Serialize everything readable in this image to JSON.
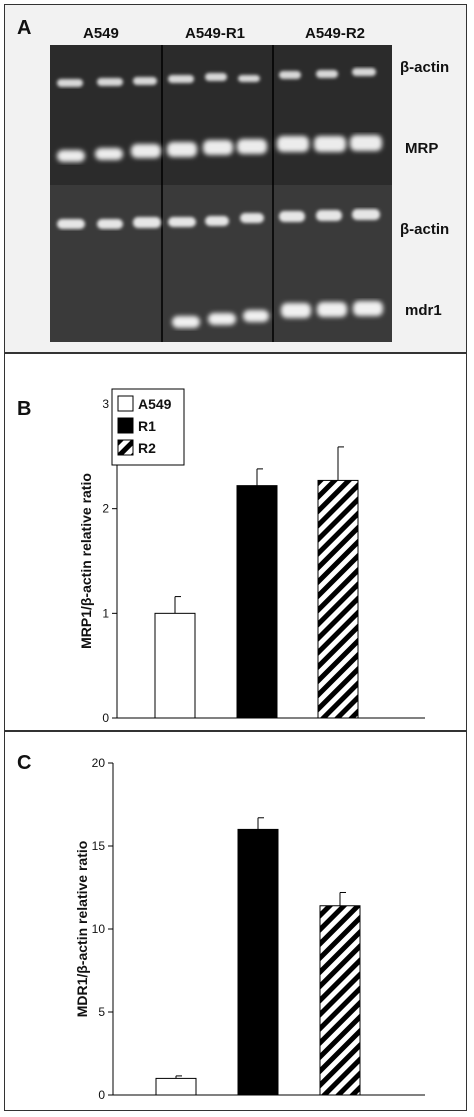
{
  "panel_a": {
    "letter": "A",
    "groups": [
      "A549",
      "A549-R1",
      "A549-R2"
    ],
    "bands": [
      "β-actin",
      "MRP",
      "β-actin",
      "mdr1"
    ]
  },
  "chart_data": [
    {
      "type": "bar",
      "panel": "B",
      "categories": [
        "A549",
        "R1",
        "R2"
      ],
      "values": [
        1.0,
        2.22,
        2.27
      ],
      "errors": [
        0.16,
        0.16,
        0.32
      ],
      "ylabel": "MRP1/β-actin relative ratio",
      "ylim": [
        0,
        3
      ],
      "yticks": [
        "0",
        "1",
        "2",
        "3"
      ],
      "legend": [
        "A549",
        "R1",
        "R2"
      ],
      "legend_position": "top-left",
      "fills": [
        "white",
        "black",
        "hatched"
      ]
    },
    {
      "type": "bar",
      "panel": "C",
      "categories": [
        "A549",
        "R1",
        "R2"
      ],
      "values": [
        1.0,
        16.0,
        11.4
      ],
      "errors": [
        0.15,
        0.7,
        0.8
      ],
      "ylabel": "MDR1/β-actin relative ratio",
      "ylim": [
        0,
        20
      ],
      "yticks": [
        "0",
        "5",
        "10",
        "15",
        "20"
      ],
      "fills": [
        "white",
        "black",
        "hatched"
      ]
    }
  ]
}
